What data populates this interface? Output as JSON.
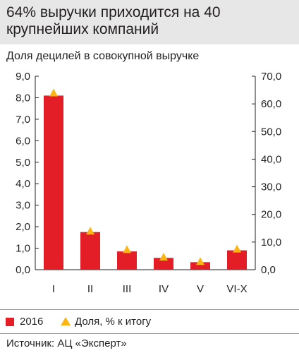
{
  "header": {
    "title": "64% выручки приходится на 40 крупнейших компаний"
  },
  "chart_data": {
    "type": "bar",
    "title": "64% выручки приходится на 40 крупнейших компаний",
    "subtitle": "Доля децилей в совокупной выручке",
    "categories": [
      "I",
      "II",
      "III",
      "IV",
      "V",
      "VI-X"
    ],
    "series": [
      {
        "name": "2016",
        "axis": "left",
        "type": "bar",
        "values": [
          8.1,
          1.75,
          0.85,
          0.55,
          0.35,
          0.9
        ],
        "color": "#e31e26"
      },
      {
        "name": "Доля, % к итогу",
        "axis": "right",
        "type": "marker",
        "marker": "triangle",
        "values": [
          64.0,
          14.0,
          7.3,
          4.6,
          3.0,
          7.5
        ],
        "color": "#fbb616"
      }
    ],
    "y_left": {
      "lim": [
        0,
        9
      ],
      "ticks": [
        "0,0",
        "1,0",
        "2,0",
        "3,0",
        "4,0",
        "5,0",
        "6,0",
        "7,0",
        "8,0",
        "9,0"
      ]
    },
    "y_right": {
      "lim": [
        0,
        70
      ],
      "ticks": [
        "0,0",
        "10,0",
        "20,0",
        "30,0",
        "40,0",
        "50,0",
        "60,0",
        "70,0"
      ]
    },
    "grid": false,
    "legend_position": "bottom-left"
  },
  "legend": {
    "bar_label": "2016",
    "marker_label": "Доля, % к итогу"
  },
  "footer": {
    "source": "Источник: АЦ «Эксперт»"
  },
  "colors": {
    "bar": "#e31e26",
    "marker": "#fbb616",
    "header_bg": "#e7e7e7",
    "axis": "#231f20"
  }
}
